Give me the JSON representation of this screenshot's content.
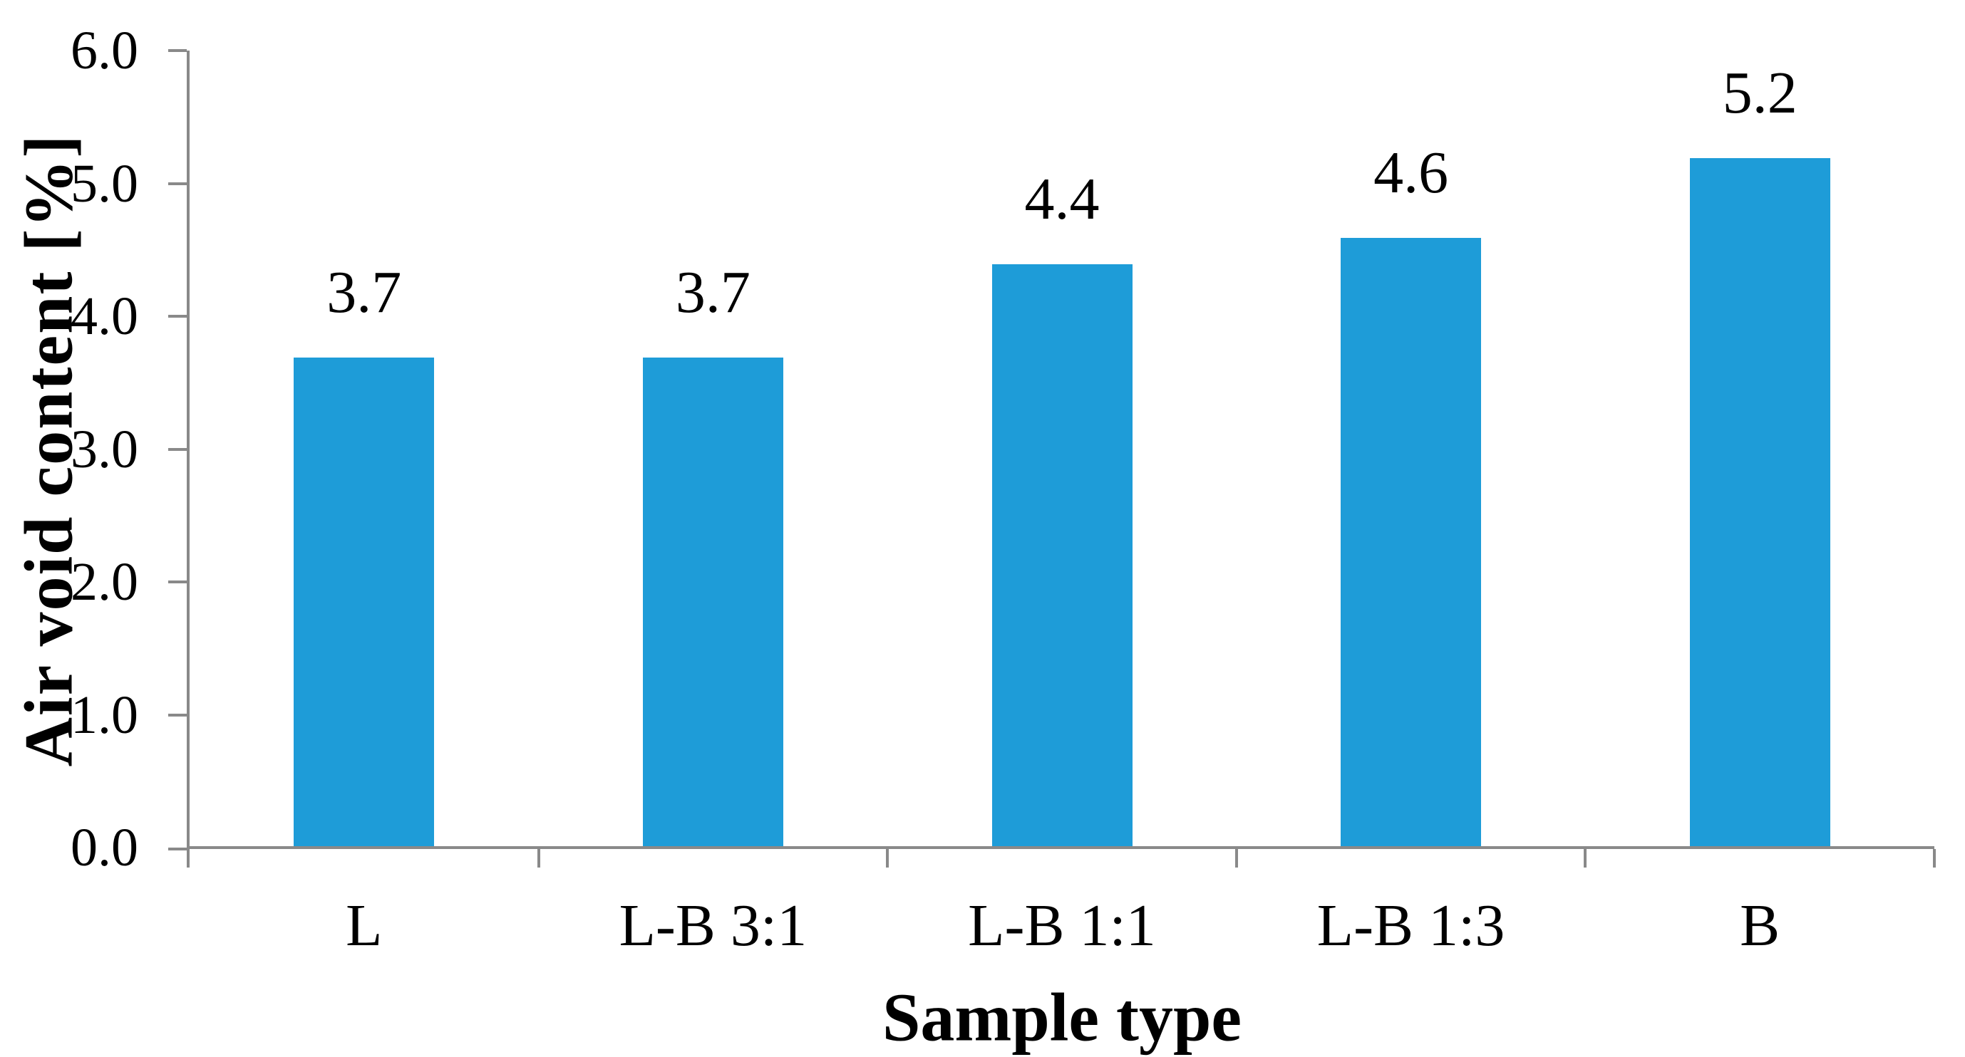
{
  "chart_data": {
    "type": "bar",
    "title": "",
    "xlabel": "Sample type",
    "ylabel": "Air void content [%]",
    "categories": [
      "L",
      "L-B 3:1",
      "L-B 1:1",
      "L-B 1:3",
      "B"
    ],
    "values": [
      3.7,
      3.7,
      4.4,
      4.6,
      5.2
    ],
    "data_labels": [
      "3.7",
      "3.7",
      "4.4",
      "4.6",
      "5.2"
    ],
    "ylim": [
      0,
      6
    ],
    "ytick_step": 1.0,
    "ytick_labels": [
      "0.0",
      "1.0",
      "2.0",
      "3.0",
      "4.0",
      "5.0",
      "6.0"
    ],
    "grid": false,
    "legend": "none",
    "colors": {
      "bar": "#1E9CD8",
      "axis": "#898989",
      "text": "#000000"
    }
  }
}
